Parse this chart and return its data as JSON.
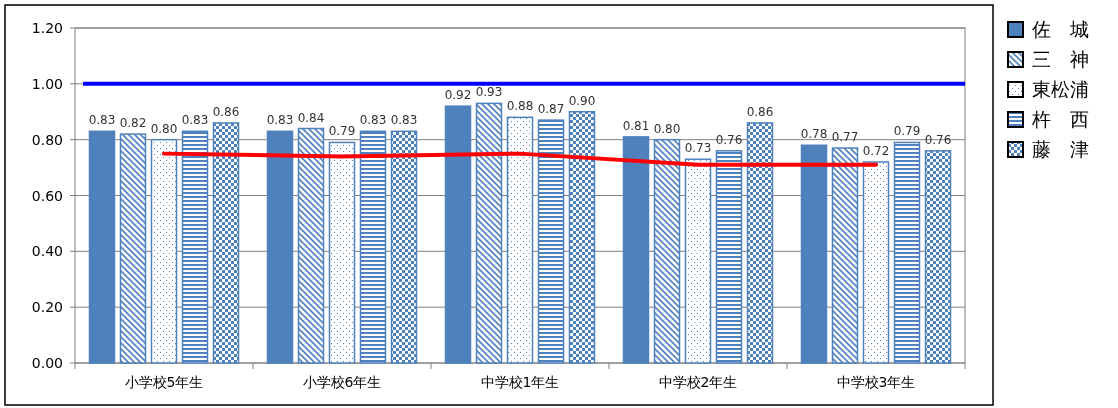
{
  "chart_data": {
    "type": "bar",
    "categories": [
      "小学校5年生",
      "小学校6年生",
      "中学校1年生",
      "中学校2年生",
      "中学校3年生"
    ],
    "series": [
      {
        "name": "佐　城",
        "color": "#4f81bd",
        "values": [
          0.83,
          0.83,
          0.92,
          0.81,
          0.78
        ],
        "value_labels": [
          "0.83",
          "0.83",
          "0.92",
          "0.81",
          "0.78"
        ]
      },
      {
        "name": "三　神",
        "color": "#4f81bd",
        "values": [
          0.82,
          0.84,
          0.93,
          0.8,
          0.77
        ],
        "value_labels": [
          "0.82",
          "0.84",
          "0.93",
          "0.80",
          "0.77"
        ]
      },
      {
        "name": "東松浦",
        "color": "#4f81bd",
        "values": [
          0.8,
          0.79,
          0.88,
          0.73,
          0.72
        ],
        "value_labels": [
          "0.80",
          "0.79",
          "0.88",
          "0.73",
          "0.72"
        ]
      },
      {
        "name": "杵　西",
        "color": "#4f81bd",
        "values": [
          0.83,
          0.83,
          0.87,
          0.76,
          0.79
        ],
        "value_labels": [
          "0.83",
          "0.83",
          "0.87",
          "0.76",
          "0.79"
        ]
      },
      {
        "name": "藤　津",
        "color": "#4f81bd",
        "values": [
          0.86,
          0.83,
          0.9,
          0.86,
          0.76
        ],
        "value_labels": [
          "0.86",
          "0.83",
          "0.90",
          "0.86",
          "0.76"
        ]
      },
      {
        "type": "line",
        "color": "#ff0000",
        "values": [
          0.75,
          0.74,
          0.75,
          0.71,
          0.71
        ]
      }
    ],
    "ref_lines": [
      {
        "axis": "y",
        "value": 1.0,
        "color": "#0000ff"
      }
    ],
    "ylim": [
      0,
      1.2
    ],
    "yticks": [
      {
        "value": 0,
        "label": "0.00"
      },
      {
        "value": 0.2,
        "label": "0.20"
      },
      {
        "value": 0.4,
        "label": "0.40"
      },
      {
        "value": 0.6,
        "label": "0.60"
      },
      {
        "value": 0.8,
        "label": "0.80"
      },
      {
        "value": 1.0,
        "label": "1.00"
      },
      {
        "value": 1.2,
        "label": "1.20"
      }
    ],
    "grid": "y",
    "legend": "right"
  }
}
